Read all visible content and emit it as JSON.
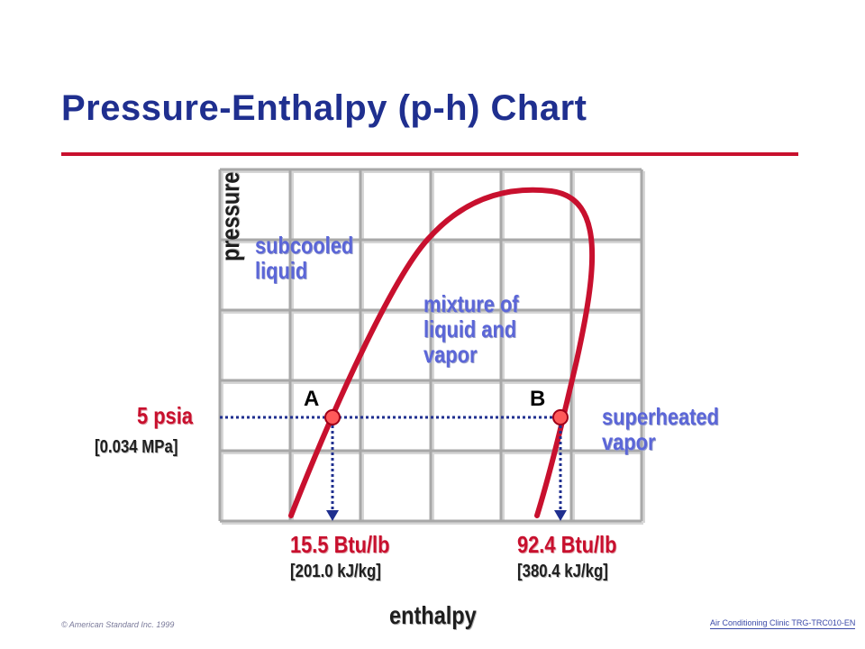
{
  "title": "Pressure-Enthalpy (p-h) Chart",
  "colors": {
    "title": "#1f2f8f",
    "accent": "#c8102e",
    "region_label": "#5b66d8",
    "dotted_line": "#1f2f8f",
    "grid": "#a8a8a8"
  },
  "axes": {
    "y_label": "pressure",
    "x_label": "enthalpy"
  },
  "regions": {
    "subcooled_line1": "subcooled",
    "subcooled_line2": "liquid",
    "mixture_line1": "mixture of",
    "mixture_line2": "liquid and",
    "mixture_line3": "vapor",
    "superheated_line1": "superheated",
    "superheated_line2": "vapor"
  },
  "pressure_marker": {
    "value": "5 psia",
    "si": "[0.034 MPa]"
  },
  "points": [
    {
      "label": "A",
      "enthalpy": "15.5 Btu/lb",
      "si": "[201.0 kJ/kg]"
    },
    {
      "label": "B",
      "enthalpy": "92.4 Btu/lb",
      "si": "[380.4 kJ/kg]"
    }
  ],
  "footer": {
    "copyright": "© American Standard Inc. 1999",
    "course": "Air Conditioning Clinic TRG-TRC010-EN"
  }
}
